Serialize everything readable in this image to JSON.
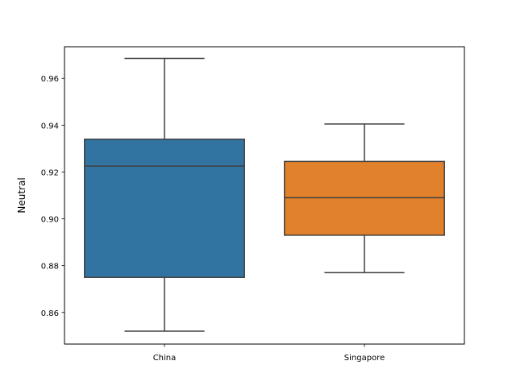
{
  "chart_data": {
    "type": "box",
    "title": "",
    "xlabel": "",
    "ylabel": "Neutral",
    "ylim": [
      0.8465,
      0.9735
    ],
    "yticks": [
      0.86,
      0.88,
      0.9,
      0.92,
      0.94,
      0.96
    ],
    "ytick_labels": [
      "0.86",
      "0.88",
      "0.90",
      "0.92",
      "0.94",
      "0.96"
    ],
    "grid": false,
    "legend": "none",
    "categories": [
      "China",
      "Singapore"
    ],
    "boxes": [
      {
        "category": "China",
        "whisker_low": 0.852,
        "q1": 0.875,
        "median": 0.9225,
        "q3": 0.934,
        "whisker_high": 0.9685,
        "color": "#3274a1"
      },
      {
        "category": "Singapore",
        "whisker_low": 0.877,
        "q1": 0.893,
        "median": 0.909,
        "q3": 0.9245,
        "whisker_high": 0.9405,
        "color": "#e1812c"
      }
    ],
    "line_color": "#3f3f3f"
  }
}
